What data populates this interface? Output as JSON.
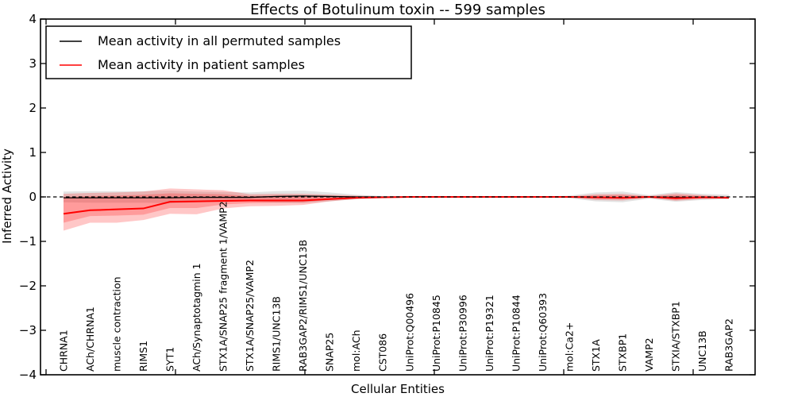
{
  "title": "Effects of Botulinum toxin -- 599 samples",
  "axes": {
    "x_label": "Cellular Entities",
    "y_label": "Inferred Activity",
    "y_tick_labels": [
      "4",
      "3",
      "2",
      "1",
      "0",
      "−1",
      "−2",
      "−3",
      "−4"
    ]
  },
  "legend": {
    "items": [
      {
        "label": "Mean activity in all permuted samples",
        "color": "#000000"
      },
      {
        "label": "Mean activity in patient samples",
        "color": "#ff0000"
      }
    ]
  },
  "chart_data": {
    "type": "line",
    "title": "Effects of Botulinum toxin -- 599 samples",
    "xlabel": "Cellular Entities",
    "ylabel": "Inferred Activity",
    "ylim": [
      -4,
      4
    ],
    "grid": false,
    "legend_position": "upper left",
    "zero_line": {
      "style": "dashed",
      "color": "#000000",
      "y": 0
    },
    "categories": [
      "CHRNA1",
      "ACh/CHRNA1",
      "muscle contraction",
      "RIMS1",
      "SYT1",
      "ACh/Synaptotagmin 1",
      "STX1A/SNAP25 fragment 1/VAMP2",
      "STX1A/SNAP25/VAMP2",
      "RIMS1/UNC13B",
      "RAB3GAP2/RIMS1/UNC13B",
      "SNAP25",
      "mol:ACh",
      "CST086",
      "UniProt:Q00496",
      "UniProt:P10845",
      "UniProt:P30996",
      "UniProt:P19321",
      "UniProt:P10844",
      "UniProt:Q60393",
      "mol:Ca2+",
      "STX1A",
      "STXBP1",
      "VAMP2",
      "STXIA/STXBP1",
      "UNC13B",
      "RAB3GAP2"
    ],
    "series": [
      {
        "name": "Mean activity in all permuted samples",
        "color": "#000000",
        "width": 1.3,
        "values": [
          -0.02,
          -0.02,
          -0.02,
          -0.02,
          -0.02,
          -0.01,
          -0.01,
          -0.01,
          0.01,
          0.02,
          0.01,
          0,
          0,
          0,
          0,
          0,
          0,
          0,
          0,
          0,
          -0.01,
          -0.02,
          0,
          -0.01,
          -0.01,
          -0.01
        ]
      },
      {
        "name": "Mean activity in patient samples",
        "color": "#ff0000",
        "width": 2,
        "values": [
          -0.38,
          -0.3,
          -0.28,
          -0.26,
          -0.11,
          -0.1,
          -0.09,
          -0.08,
          -0.08,
          -0.08,
          -0.05,
          -0.02,
          -0.01,
          0,
          0,
          0,
          0,
          0,
          0,
          0,
          -0.01,
          -0.02,
          0,
          -0.03,
          -0.01,
          -0.02
        ]
      }
    ],
    "bands": [
      {
        "name": "permuted-samples-spread",
        "color": "rgba(0,0,0,0.11)",
        "upper": [
          0.12,
          0.13,
          0.13,
          0.13,
          0.14,
          0.12,
          0.11,
          0.1,
          0.13,
          0.14,
          0.1,
          0.05,
          0.02,
          0.01,
          0.01,
          0.01,
          0.01,
          0.01,
          0.01,
          0.03,
          0.1,
          0.12,
          0.04,
          0.11,
          0.07,
          0.05
        ],
        "lower": [
          -0.12,
          -0.13,
          -0.13,
          -0.13,
          -0.14,
          -0.12,
          -0.11,
          -0.1,
          -0.13,
          -0.14,
          -0.1,
          -0.05,
          -0.02,
          -0.01,
          -0.01,
          -0.01,
          -0.01,
          -0.01,
          -0.01,
          -0.03,
          -0.1,
          -0.12,
          -0.04,
          -0.11,
          -0.07,
          -0.05
        ]
      },
      {
        "name": "patient-samples-outer-spread",
        "color": "rgba(255,0,0,0.22)",
        "upper": [
          0.07,
          0.09,
          0.1,
          0.12,
          0.19,
          0.17,
          0.15,
          0.06,
          0.07,
          0.07,
          0.05,
          0.03,
          0.01,
          0.005,
          0.005,
          0.005,
          0.005,
          0.005,
          0.005,
          0.01,
          0.06,
          0.07,
          0.02,
          0.08,
          0.04,
          0.01
        ],
        "lower": [
          -0.76,
          -0.58,
          -0.58,
          -0.52,
          -0.38,
          -0.39,
          -0.26,
          -0.21,
          -0.2,
          -0.18,
          -0.1,
          -0.05,
          -0.02,
          -0.01,
          -0.01,
          -0.01,
          -0.01,
          -0.01,
          -0.01,
          -0.01,
          -0.07,
          -0.08,
          -0.02,
          -0.09,
          -0.05,
          -0.03
        ]
      },
      {
        "name": "patient-samples-inner-spread",
        "color": "rgba(255,0,0,0.22)",
        "upper": [
          0,
          0.02,
          0.03,
          0.05,
          0.08,
          0.07,
          0.06,
          0.02,
          0.03,
          0.03,
          0.02,
          0.01,
          0.005,
          0,
          0,
          0,
          0,
          0,
          0,
          0.005,
          0.03,
          0.04,
          0.01,
          0.04,
          0.02,
          0.005
        ],
        "lower": [
          -0.58,
          -0.43,
          -0.42,
          -0.4,
          -0.25,
          -0.25,
          -0.17,
          -0.14,
          -0.13,
          -0.12,
          -0.07,
          -0.03,
          -0.01,
          -0.005,
          -0.005,
          -0.005,
          -0.005,
          -0.005,
          -0.005,
          -0.005,
          -0.04,
          -0.05,
          -0.01,
          -0.06,
          -0.03,
          -0.015
        ]
      }
    ]
  }
}
